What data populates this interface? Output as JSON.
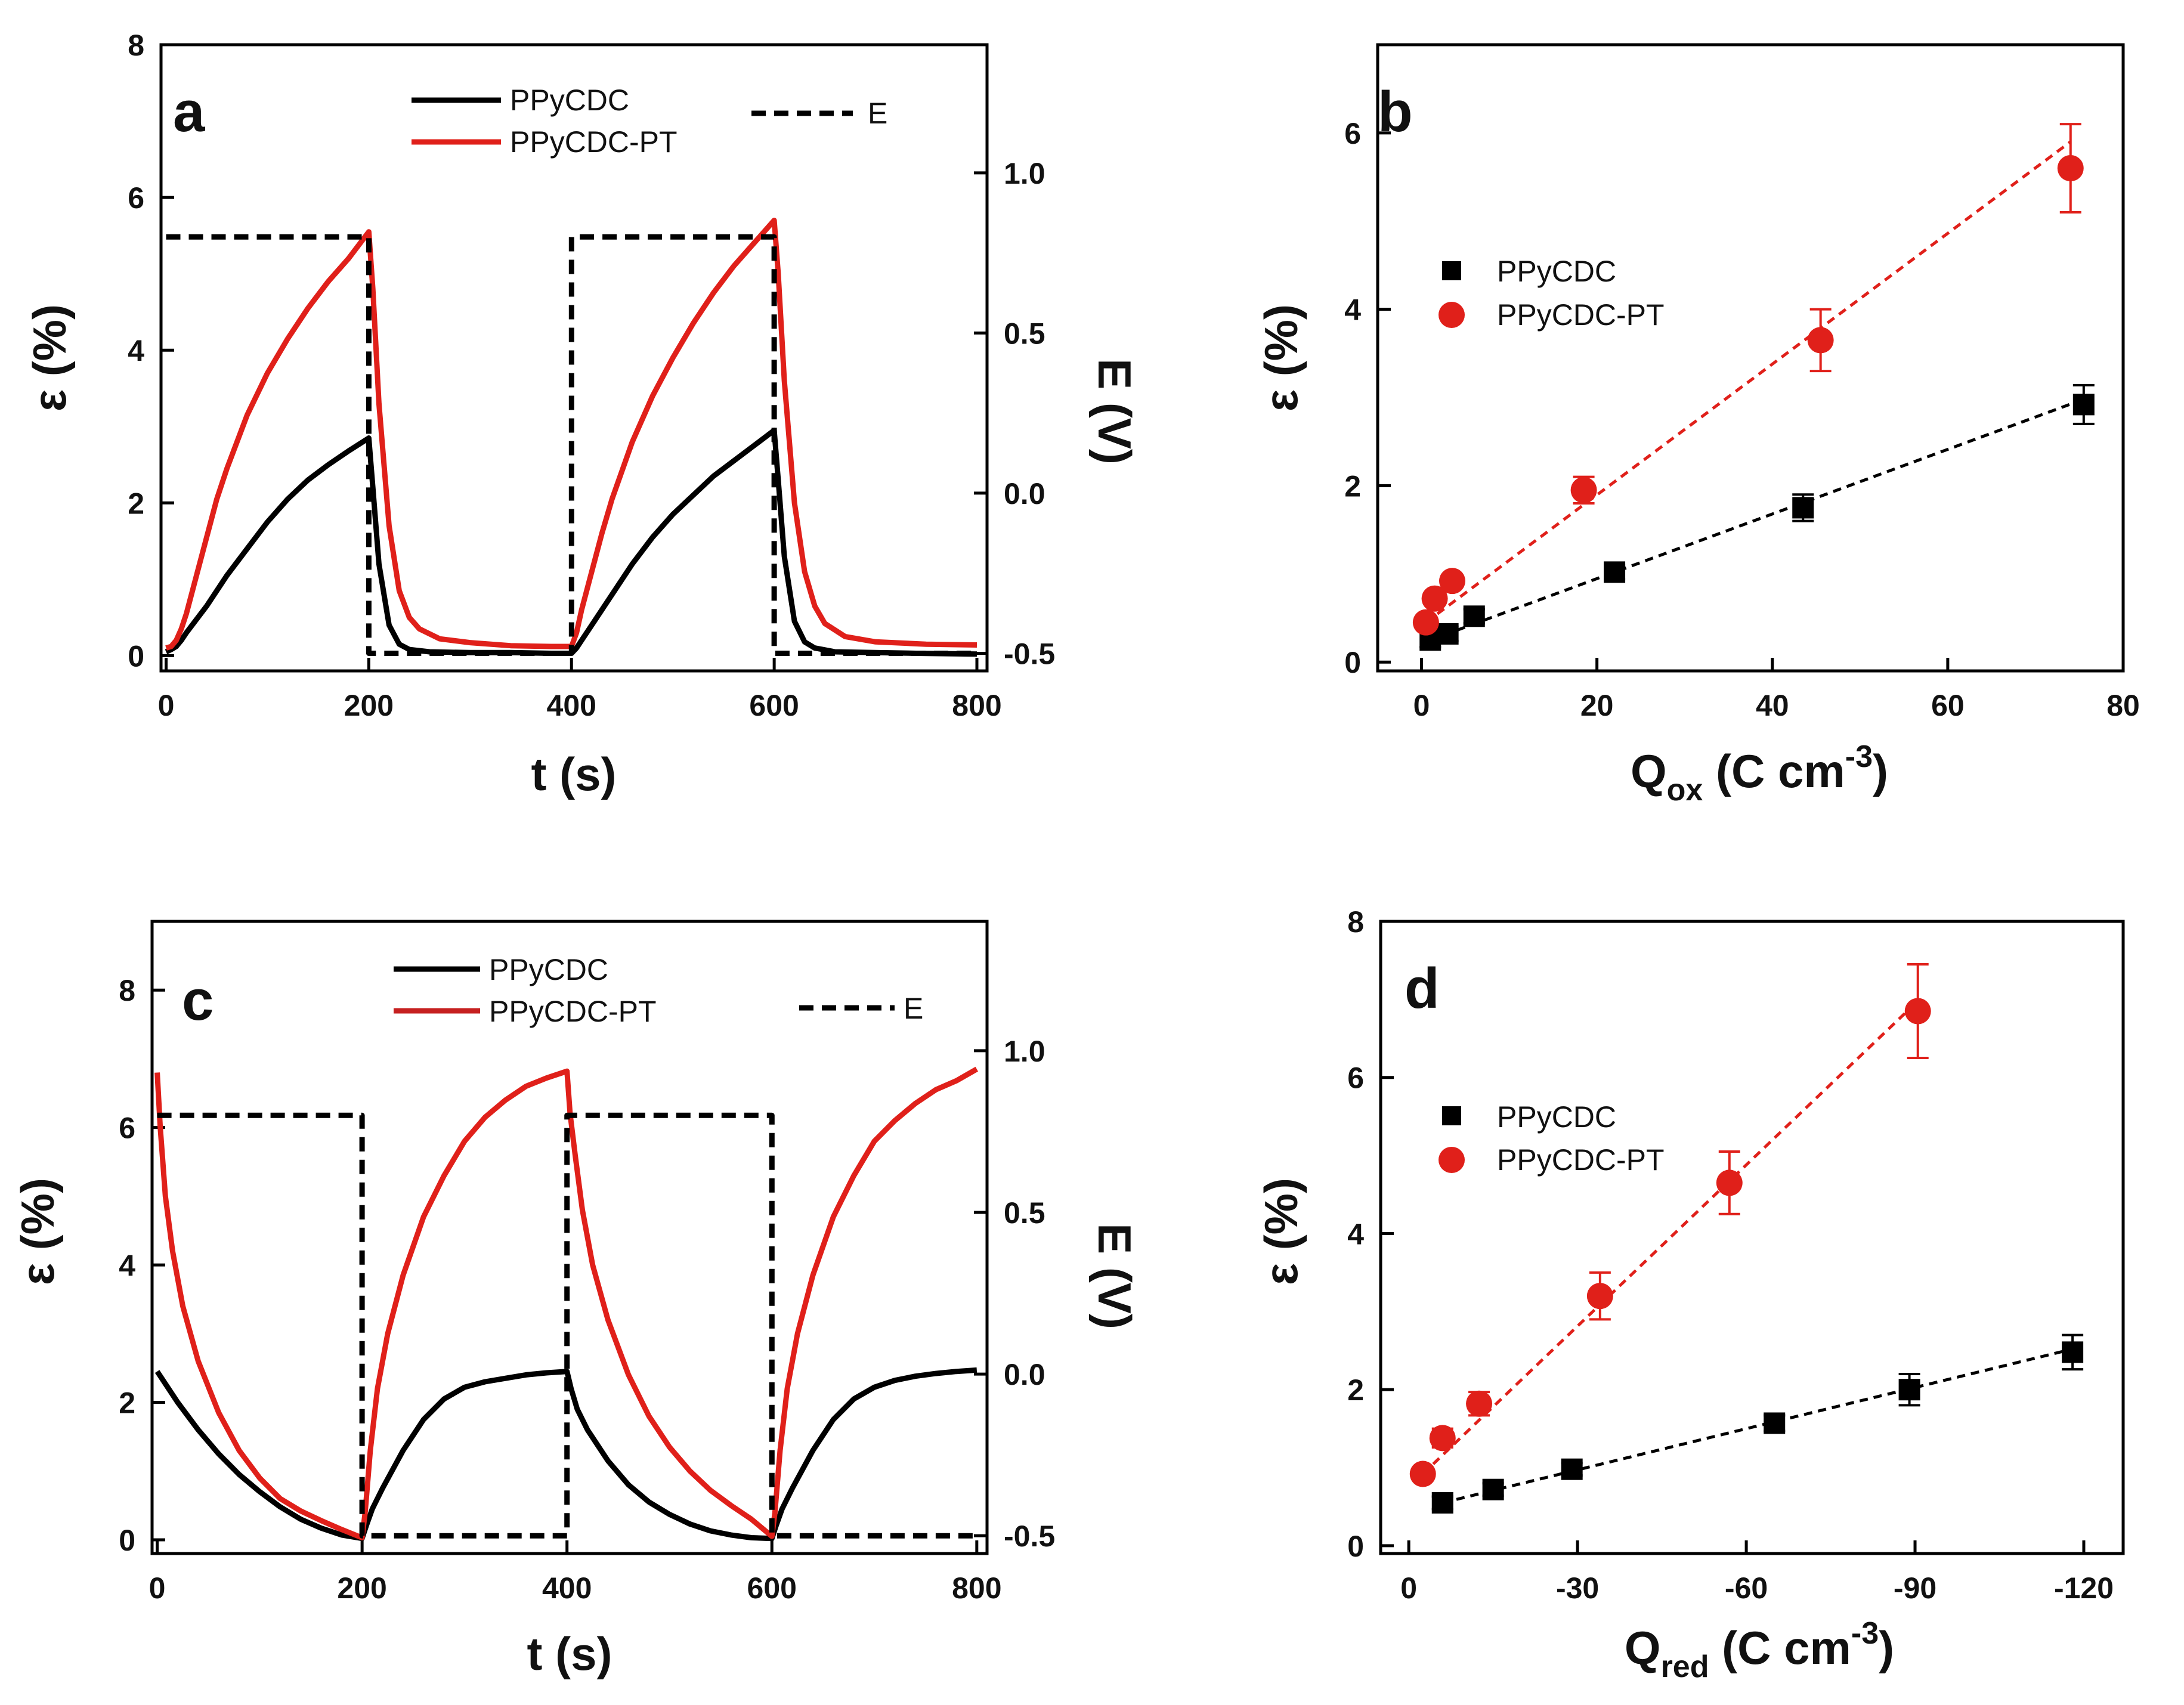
{
  "colors": {
    "black": "#000000",
    "red": "#e0201a",
    "darkred": "#c62020"
  },
  "chart_data": [
    {
      "panel": "a",
      "type": "line",
      "xlabel": "t (s)",
      "ylabel": "ε (%)",
      "y2label": "E (V)",
      "xlim": [
        -5,
        810
      ],
      "ylim": [
        -0.2,
        8
      ],
      "y2lim": [
        -0.555,
        1.4
      ],
      "xticks": [
        "0",
        "200",
        "400",
        "600",
        "800"
      ],
      "yticks": [
        "0",
        "2",
        "4",
        "6",
        "8"
      ],
      "y2ticks": [
        "-0.5",
        "0.0",
        "0.5",
        "1.0"
      ],
      "legend": [
        "PPyCDC",
        "PPyCDC-PT",
        "E"
      ],
      "series": [
        {
          "name": "PPyCDC",
          "color": "#000000",
          "dash": false,
          "x": [
            0,
            5,
            10,
            15,
            20,
            40,
            60,
            80,
            100,
            120,
            140,
            160,
            180,
            200,
            204,
            210,
            220,
            230,
            240,
            260,
            300,
            340,
            380,
            400,
            405,
            410,
            420,
            440,
            460,
            480,
            500,
            520,
            540,
            560,
            580,
            600,
            604,
            610,
            620,
            630,
            640,
            660,
            700,
            740,
            800
          ],
          "y": [
            0.05,
            0.08,
            0.12,
            0.2,
            0.3,
            0.65,
            1.05,
            1.4,
            1.75,
            2.05,
            2.3,
            2.5,
            2.68,
            2.85,
            2.2,
            1.2,
            0.4,
            0.15,
            0.08,
            0.05,
            0.04,
            0.04,
            0.03,
            0.03,
            0.1,
            0.2,
            0.4,
            0.8,
            1.2,
            1.55,
            1.85,
            2.1,
            2.35,
            2.55,
            2.75,
            2.95,
            2.3,
            1.3,
            0.45,
            0.18,
            0.1,
            0.05,
            0.04,
            0.03,
            0.02
          ]
        },
        {
          "name": "PPyCDC-PT",
          "color": "#e0201a",
          "dash": false,
          "x": [
            0,
            5,
            10,
            15,
            20,
            30,
            40,
            50,
            60,
            80,
            100,
            120,
            140,
            160,
            180,
            200,
            204,
            210,
            220,
            230,
            240,
            250,
            270,
            300,
            340,
            380,
            400,
            405,
            410,
            420,
            430,
            440,
            460,
            480,
            500,
            520,
            540,
            560,
            580,
            600,
            604,
            610,
            620,
            630,
            640,
            650,
            670,
            700,
            750,
            800
          ],
          "y": [
            0.1,
            0.12,
            0.2,
            0.35,
            0.55,
            1.05,
            1.55,
            2.05,
            2.45,
            3.15,
            3.7,
            4.15,
            4.55,
            4.9,
            5.2,
            5.55,
            4.8,
            3.3,
            1.7,
            0.85,
            0.5,
            0.35,
            0.22,
            0.17,
            0.13,
            0.12,
            0.12,
            0.3,
            0.6,
            1.1,
            1.6,
            2.05,
            2.8,
            3.4,
            3.9,
            4.35,
            4.75,
            5.1,
            5.4,
            5.7,
            5.0,
            3.6,
            2.0,
            1.1,
            0.65,
            0.42,
            0.25,
            0.18,
            0.15,
            0.14
          ]
        },
        {
          "name": "E",
          "color": "#000000",
          "dash": true,
          "axis": "y2",
          "x": [
            0,
            200,
            200,
            400,
            400,
            600,
            600,
            800
          ],
          "y": [
            0.8,
            0.8,
            -0.5,
            -0.5,
            0.8,
            0.8,
            -0.5,
            -0.5
          ]
        }
      ]
    },
    {
      "panel": "b",
      "type": "scatter",
      "xlabel": "Qox (C cm-3)",
      "xlabel_main": "Q",
      "xlabel_sub": "ox",
      "xlabel_unit": " (C cm",
      "xlabel_sup": "-3",
      "xlabel_end": ")",
      "ylabel": "ε (%)",
      "xlim": [
        -5,
        80
      ],
      "ylim": [
        -0.1,
        7
      ],
      "xticks": [
        "0",
        "20",
        "40",
        "60",
        "80"
      ],
      "yticks": [
        "0",
        "2",
        "4",
        "6"
      ],
      "legend": [
        "PPyCDC",
        "PPyCDC-PT"
      ],
      "series": [
        {
          "name": "PPyCDC",
          "color": "#000000",
          "marker": "square",
          "x": [
            1,
            3,
            6,
            22,
            43.5,
            75.5
          ],
          "y": [
            0.25,
            0.32,
            0.52,
            1.02,
            1.75,
            2.92
          ],
          "err": [
            0.08,
            0.08,
            0.08,
            0.08,
            0.15,
            0.22
          ],
          "fit": [
            [
              1,
              0.25
            ],
            [
              75.5,
              2.98
            ]
          ]
        },
        {
          "name": "PPyCDC-PT",
          "color": "#e0201a",
          "marker": "circle",
          "x": [
            0.5,
            1.5,
            3.5,
            18.5,
            45.5,
            74
          ],
          "y": [
            0.45,
            0.72,
            0.92,
            1.95,
            3.65,
            5.6
          ],
          "err": [
            0.05,
            0.06,
            0.07,
            0.15,
            0.35,
            0.5
          ],
          "fit": [
            [
              0.5,
              0.45
            ],
            [
              74,
              5.9
            ]
          ]
        }
      ]
    },
    {
      "panel": "c",
      "type": "line",
      "xlabel": "t (s)",
      "ylabel": "ε (%)",
      "y2label": "E (V)",
      "xlim": [
        -5,
        810
      ],
      "ylim": [
        -0.2,
        9
      ],
      "y2lim": [
        -0.555,
        1.4
      ],
      "xticks": [
        "0",
        "200",
        "400",
        "600",
        "800"
      ],
      "yticks": [
        "0",
        "2",
        "4",
        "6",
        "8"
      ],
      "y2ticks": [
        "-0.5",
        "0.0",
        "0.5",
        "1.0"
      ],
      "legend": [
        "PPyCDC",
        "PPyCDC-PT",
        "E"
      ],
      "series": [
        {
          "name": "PPyCDC",
          "color": "#000000",
          "dash": false,
          "x": [
            0,
            20,
            40,
            60,
            80,
            100,
            120,
            140,
            160,
            180,
            200,
            204,
            210,
            220,
            240,
            260,
            280,
            300,
            320,
            340,
            360,
            380,
            400,
            404,
            410,
            420,
            440,
            460,
            480,
            500,
            520,
            540,
            560,
            580,
            600,
            604,
            610,
            620,
            640,
            660,
            680,
            700,
            720,
            740,
            760,
            780,
            800
          ],
          "y": [
            2.45,
            2.0,
            1.6,
            1.25,
            0.95,
            0.7,
            0.48,
            0.3,
            0.17,
            0.07,
            0.02,
            0.2,
            0.45,
            0.75,
            1.3,
            1.75,
            2.05,
            2.22,
            2.3,
            2.35,
            2.4,
            2.43,
            2.45,
            2.2,
            1.9,
            1.6,
            1.15,
            0.8,
            0.55,
            0.37,
            0.23,
            0.13,
            0.07,
            0.03,
            0.02,
            0.2,
            0.45,
            0.75,
            1.3,
            1.75,
            2.05,
            2.22,
            2.32,
            2.38,
            2.42,
            2.45,
            2.47
          ]
        },
        {
          "name": "PPyCDC-PT",
          "color": "#e0201a",
          "dash": false,
          "x": [
            0,
            3,
            8,
            15,
            25,
            40,
            60,
            80,
            100,
            120,
            140,
            160,
            180,
            200,
            203,
            208,
            215,
            225,
            240,
            260,
            280,
            300,
            320,
            340,
            360,
            380,
            400,
            403,
            408,
            415,
            425,
            440,
            460,
            480,
            500,
            520,
            540,
            560,
            580,
            600,
            603,
            608,
            615,
            625,
            640,
            660,
            680,
            700,
            720,
            740,
            760,
            780,
            800
          ],
          "y": [
            6.8,
            6.0,
            5.0,
            4.2,
            3.4,
            2.6,
            1.85,
            1.3,
            0.9,
            0.6,
            0.42,
            0.28,
            0.15,
            0.03,
            0.4,
            1.3,
            2.2,
            3.0,
            3.85,
            4.7,
            5.3,
            5.8,
            6.15,
            6.4,
            6.6,
            6.72,
            6.82,
            6.2,
            5.6,
            4.8,
            4.0,
            3.2,
            2.4,
            1.8,
            1.35,
            1.0,
            0.72,
            0.5,
            0.3,
            0.05,
            0.4,
            1.3,
            2.2,
            3.0,
            3.85,
            4.7,
            5.3,
            5.8,
            6.1,
            6.35,
            6.55,
            6.68,
            6.85
          ]
        },
        {
          "name": "E",
          "color": "#000000",
          "dash": true,
          "axis": "y2",
          "x": [
            0,
            200,
            200,
            400,
            400,
            600,
            600,
            800
          ],
          "y": [
            0.8,
            0.8,
            -0.5,
            -0.5,
            0.8,
            0.8,
            -0.5,
            -0.5
          ]
        }
      ]
    },
    {
      "panel": "d",
      "type": "scatter",
      "xlabel": "Qred (C cm-3)",
      "xlabel_main": "Q",
      "xlabel_sub": "red",
      "xlabel_unit": " (C cm",
      "xlabel_sup": "-3",
      "xlabel_end": ")",
      "ylabel": "ε (%)",
      "xlim": [
        5,
        -127
      ],
      "ylim": [
        -0.1,
        8
      ],
      "xticks": [
        "0",
        "-30",
        "-60",
        "-90",
        "-120"
      ],
      "yticks": [
        "0",
        "2",
        "4",
        "6",
        "8"
      ],
      "legend": [
        "PPyCDC",
        "PPyCDC-PT"
      ],
      "series": [
        {
          "name": "PPyCDC",
          "color": "#000000",
          "marker": "square",
          "x": [
            -6,
            -15,
            -29,
            -65,
            -89,
            -118
          ],
          "y": [
            0.55,
            0.72,
            0.98,
            1.57,
            2.0,
            2.48
          ],
          "err": [
            0.08,
            0.08,
            0.08,
            0.1,
            0.2,
            0.22
          ],
          "fit": [
            [
              -6,
              0.55
            ],
            [
              -118,
              2.52
            ]
          ]
        },
        {
          "name": "PPyCDC-PT",
          "color": "#e0201a",
          "marker": "circle",
          "x": [
            -2.5,
            -6,
            -12.5,
            -34,
            -57,
            -90.5
          ],
          "y": [
            0.92,
            1.38,
            1.82,
            3.2,
            4.65,
            6.85
          ],
          "err": [
            0.07,
            0.12,
            0.15,
            0.3,
            0.4,
            0.6
          ],
          "fit": [
            [
              -2.5,
              0.92
            ],
            [
              -90.5,
              6.98
            ]
          ]
        }
      ]
    }
  ]
}
